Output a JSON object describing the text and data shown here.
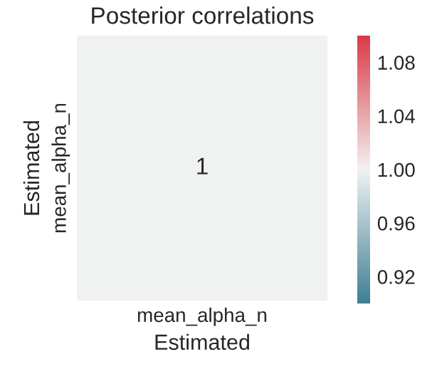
{
  "chart_data": {
    "type": "heatmap",
    "title": "Posterior correlations",
    "xlabel": "Estimated",
    "ylabel": "Estimated",
    "categories": [
      "mean_alpha_n"
    ],
    "y_categories": [
      "mean_alpha_n"
    ],
    "cells": [
      [
        1
      ]
    ],
    "data_labels": true,
    "clim": [
      0.9,
      1.1
    ],
    "cticks": [
      {
        "value": 0.92,
        "label": "0.92"
      },
      {
        "value": 0.96,
        "label": "0.96"
      },
      {
        "value": 1.0,
        "label": "1.00"
      },
      {
        "value": 1.04,
        "label": "1.04"
      },
      {
        "value": 1.08,
        "label": "1.08"
      }
    ]
  }
}
